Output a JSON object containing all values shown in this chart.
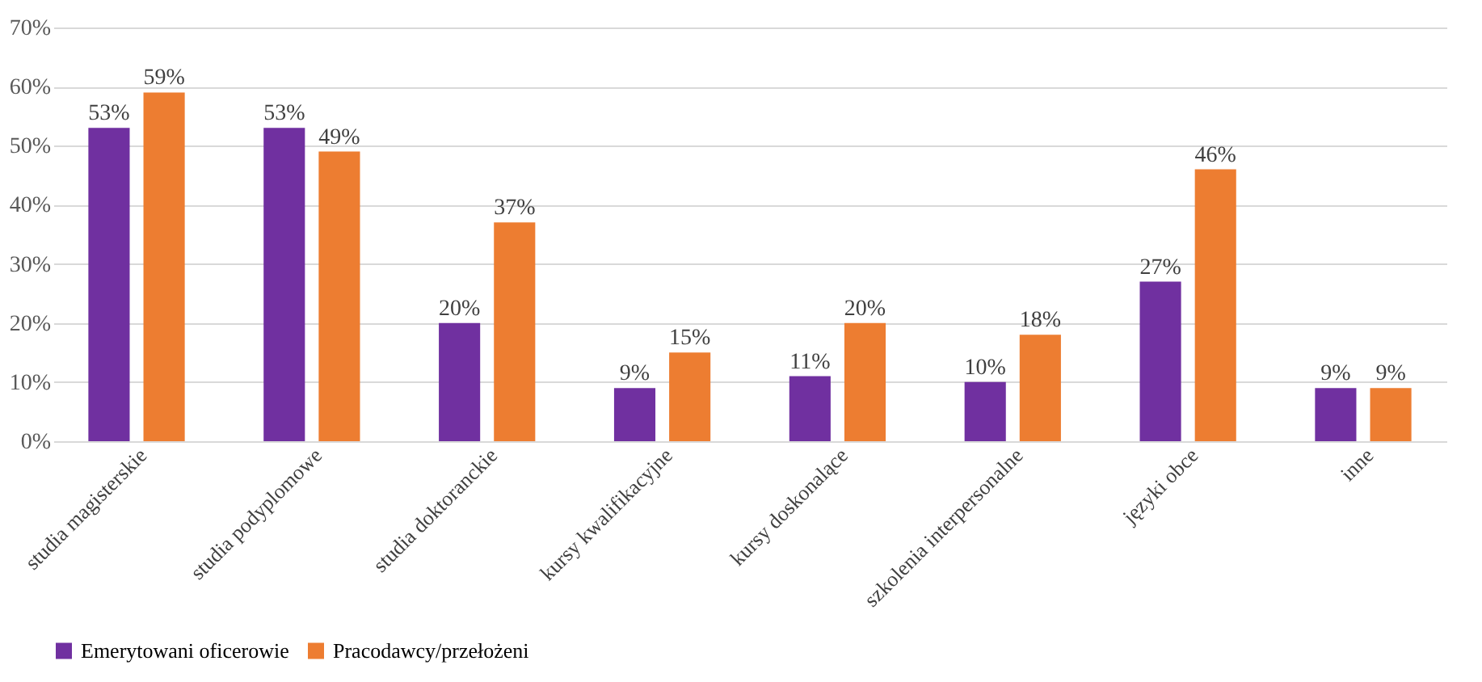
{
  "chart_data": {
    "type": "bar",
    "categories": [
      "studia magisterskie",
      "studia podyplomowe",
      "studia doktoranckie",
      "kursy kwalifikacyjne",
      "kursy doskonalące",
      "szkolenia interpersonalne",
      "języki obce",
      "inne"
    ],
    "series": [
      {
        "name": "Emerytowani oficerowie",
        "color": "#7030a0",
        "values": [
          53,
          53,
          20,
          9,
          11,
          10,
          27,
          9
        ],
        "value_labels": [
          "53%",
          "53%",
          "20%",
          "9%",
          "11%",
          "10%",
          "27%",
          "9%"
        ]
      },
      {
        "name": "Pracodawcy/przełożeni",
        "color": "#ed7d31",
        "values": [
          59,
          49,
          37,
          15,
          20,
          18,
          46,
          9
        ],
        "value_labels": [
          "59%",
          "49%",
          "37%",
          "15%",
          "20%",
          "18%",
          "46%",
          "9%"
        ]
      }
    ],
    "ylim": [
      0,
      70
    ],
    "yticks": [
      {
        "value": 0,
        "label": "0%"
      },
      {
        "value": 10,
        "label": "10%"
      },
      {
        "value": 20,
        "label": "20%"
      },
      {
        "value": 30,
        "label": "30%"
      },
      {
        "value": 40,
        "label": "40%"
      },
      {
        "value": 50,
        "label": "50%"
      },
      {
        "value": 60,
        "label": "60%"
      },
      {
        "value": 70,
        "label": "70%"
      }
    ],
    "grid": "y",
    "legend": "bottom"
  }
}
